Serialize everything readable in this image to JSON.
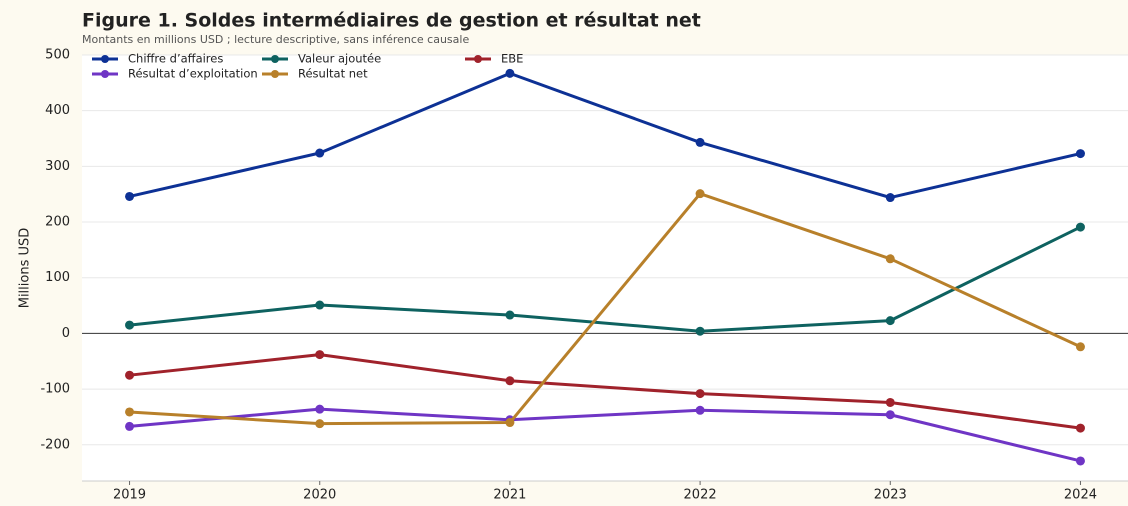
{
  "chart_data": {
    "type": "line",
    "title": "Figure 1. Soldes intermédiaires de gestion et résultat net",
    "subtitle": "Montants en millions USD ; lecture descriptive, sans inférence causale",
    "y_label": "Millions USD",
    "x": [
      2019,
      2020,
      2021,
      2022,
      2023,
      2024
    ],
    "xlim": [
      2018.75,
      2024.25
    ],
    "xticks": [
      2019,
      2020,
      2021,
      2022,
      2023,
      2024
    ],
    "ylim": [
      -265,
      500
    ],
    "yticks": [
      -200,
      -100,
      0,
      100,
      200,
      300,
      400,
      500
    ],
    "grid": true,
    "legend": "upper left",
    "series": [
      {
        "name": "Chiffre d’affaires",
        "color": "#0d3195",
        "values": [
          246,
          324,
          467,
          343,
          244,
          323
        ]
      },
      {
        "name": "Valeur ajoutée",
        "color": "#0e6260",
        "values": [
          15,
          51,
          33,
          4,
          23,
          191
        ]
      },
      {
        "name": "EBE",
        "color": "#a0222b",
        "values": [
          -75,
          -38,
          -85,
          -108,
          -124,
          -170
        ]
      },
      {
        "name": "Résultat d’exploitation",
        "color": "#6f35c5",
        "values": [
          -167,
          -136,
          -155,
          -138,
          -146,
          -229
        ]
      },
      {
        "name": "Résultat net",
        "color": "#b8802a",
        "values": [
          -141,
          -162,
          -160,
          251,
          134,
          -24
        ]
      }
    ]
  }
}
